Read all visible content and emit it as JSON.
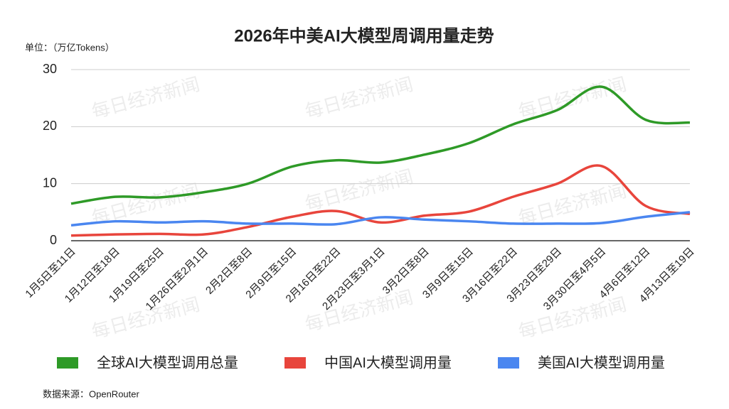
{
  "chart_data": {
    "type": "line",
    "title": "2026年中美AI大模型周调用量走势",
    "unit_label": "单位：（万亿Tokens）",
    "source": "数据来源：OpenRouter",
    "watermark": "每日经济新闻",
    "categories": [
      "1月5日至11日",
      "1月12日至18日",
      "1月19日至25日",
      "1月26日至2月1日",
      "2月2日至8日",
      "2月9日至15日",
      "2月16日至22日",
      "2月23日至3月1日",
      "3月2日至8日",
      "3月9日至15日",
      "3月16日至22日",
      "3月23日至29日",
      "3月30日至4月5日",
      "4月6日至12日",
      "4月13日至19日"
    ],
    "series": [
      {
        "name": "全球AI大模型调用总量",
        "color": "#2e9a27",
        "values": [
          6.5,
          7.7,
          7.6,
          8.5,
          10.0,
          13.0,
          14.1,
          13.7,
          15.1,
          17.1,
          20.4,
          22.9,
          27.0,
          21.2,
          20.7
        ]
      },
      {
        "name": "中国AI大模型调用量",
        "color": "#e8453c",
        "values": [
          0.9,
          1.1,
          1.2,
          1.1,
          2.4,
          4.2,
          5.2,
          3.2,
          4.4,
          5.1,
          7.7,
          10.0,
          13.1,
          6.1,
          4.7
        ]
      },
      {
        "name": "美国AI大模型调用量",
        "color": "#4a86f0",
        "values": [
          2.7,
          3.4,
          3.2,
          3.4,
          3.0,
          3.0,
          2.9,
          4.1,
          3.7,
          3.4,
          3.0,
          3.0,
          3.1,
          4.2,
          5.0
        ]
      }
    ],
    "ylim": [
      0,
      30
    ],
    "yticks": [
      0,
      10,
      20,
      30
    ],
    "grid": true
  }
}
